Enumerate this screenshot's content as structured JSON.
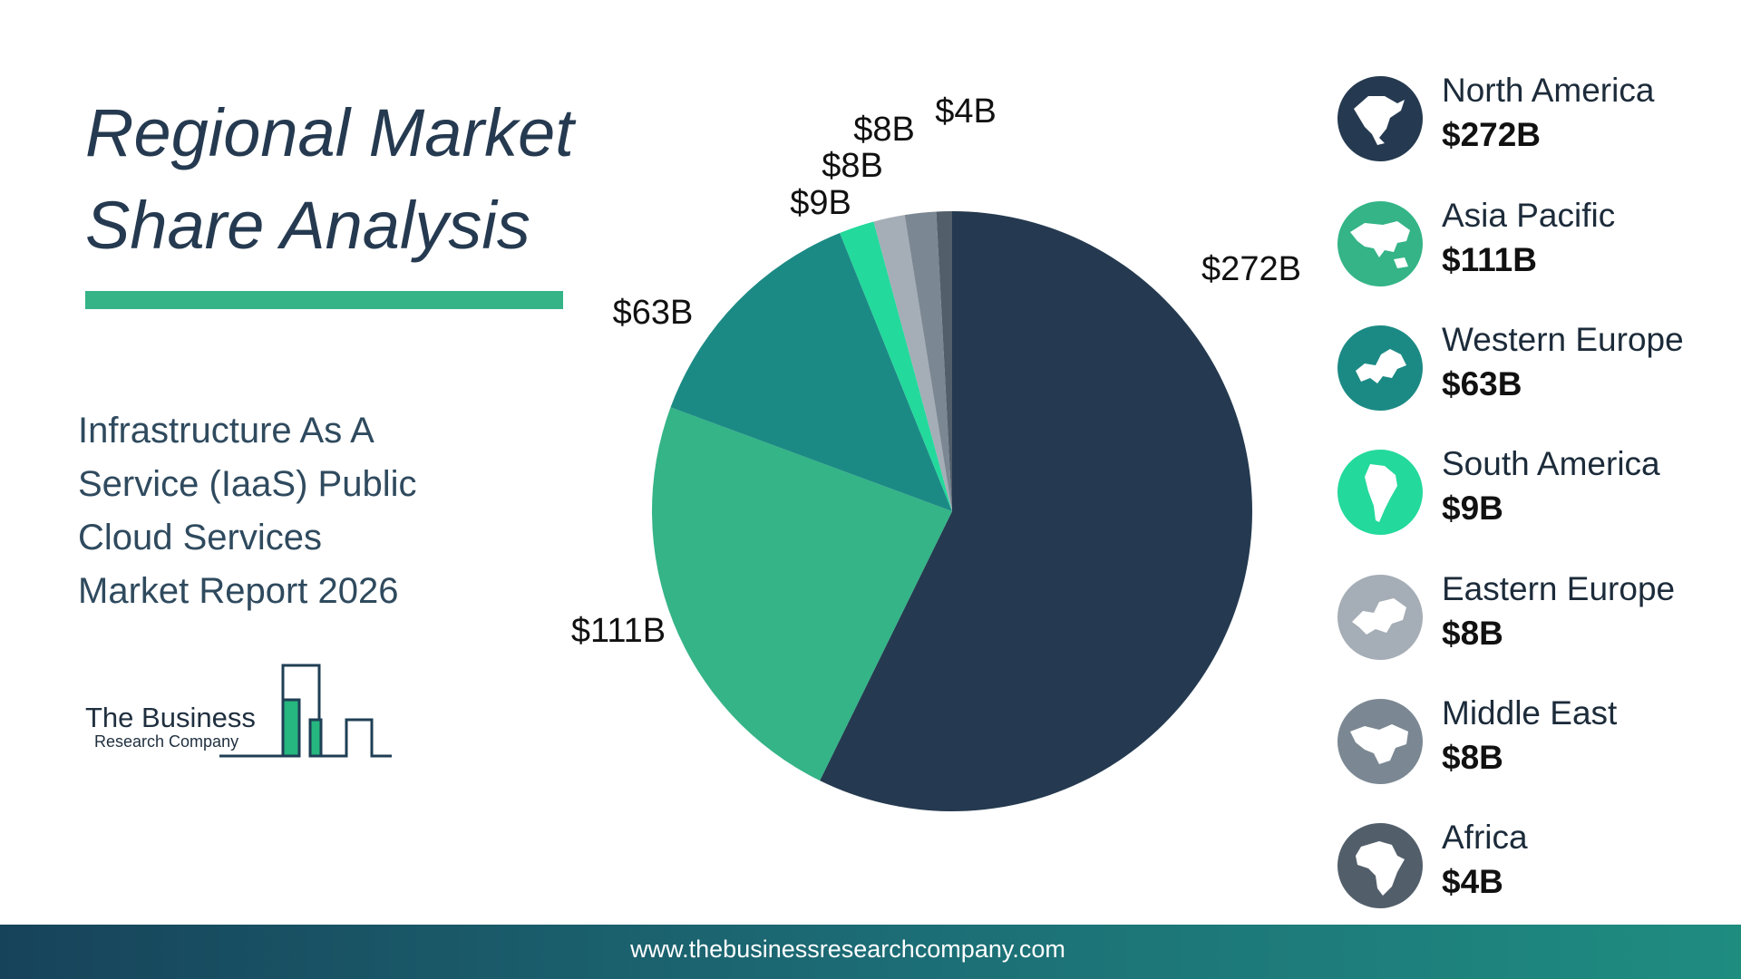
{
  "header": {
    "title_line1": "Regional Market",
    "title_line2": "Share Analysis",
    "subtitle_lines": [
      "Infrastructure As A",
      "Service (IaaS) Public",
      "Cloud Services",
      "Market Report 2026"
    ]
  },
  "logo": {
    "line1": "The Business",
    "line2": "Research Company"
  },
  "footer": {
    "url": "www.thebusinessresearchcompany.com"
  },
  "chart_data": {
    "type": "pie",
    "title": "Regional Market Share Analysis",
    "unit": "USD billions",
    "categories": [
      "North America",
      "Asia Pacific",
      "Western Europe",
      "South America",
      "Eastern Europe",
      "Middle East",
      "Africa"
    ],
    "values": [
      272,
      111,
      63,
      9,
      8,
      8,
      4
    ],
    "data_labels": [
      "$272B",
      "$111B",
      "$63B",
      "$9B",
      "$8B",
      "$8B",
      "$4B"
    ],
    "colors": [
      "#253a50",
      "#34b487",
      "#1c8a84",
      "#23d99c",
      "#a5adb6",
      "#7b8893",
      "#525f6b"
    ],
    "legend_icons": [
      "north-america-map-icon",
      "asia-pacific-map-icon",
      "western-europe-map-icon",
      "south-america-map-icon",
      "eastern-europe-map-icon",
      "middle-east-map-icon",
      "africa-map-icon"
    ],
    "legend": "right"
  }
}
